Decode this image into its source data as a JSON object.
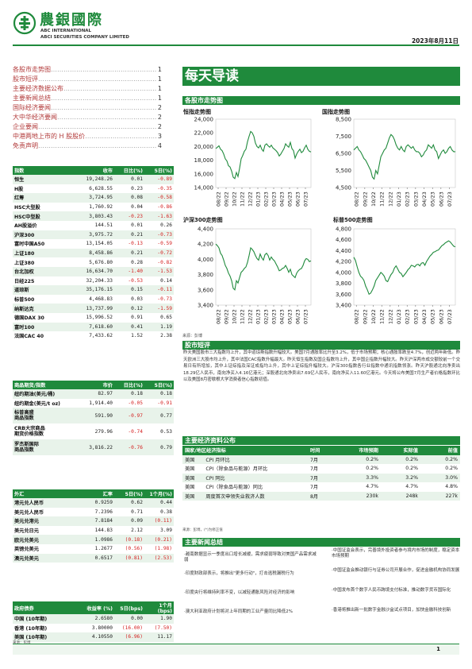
{
  "header": {
    "logo_cn": "農銀國際",
    "logo_en1": "ABC INTERNATIONAL",
    "logo_en2": "ABCI SECURITIES COMPANY LIMITED",
    "date": "2023年8月11日"
  },
  "toc": [
    {
      "label": "各股市走势图",
      "page": "1"
    },
    {
      "label": "股市短评",
      "page": "1"
    },
    {
      "label": "主要经济数据公布",
      "page": "1"
    },
    {
      "label": "主要新闻总结",
      "page": "1"
    },
    {
      "label": "国际经济要闻",
      "page": "2"
    },
    {
      "label": "大中华经济要闻",
      "page": "2"
    },
    {
      "label": "企业要闻",
      "page": "2"
    },
    {
      "label": "中港两地上市的 H 股股价",
      "page": "3"
    },
    {
      "label": "免责声明",
      "page": "4"
    }
  ],
  "page_title": "每天导读",
  "charts_section_title": "各股市走势图",
  "chart_data": [
    {
      "type": "line",
      "title": "恒指走势图",
      "x_ticks": [
        "08/22",
        "09/22",
        "10/22",
        "11/22",
        "12/22",
        "01/23",
        "02/23",
        "03/23",
        "04/23",
        "05/23",
        "06/23",
        "07/23"
      ],
      "y_ticks": [
        "14,000",
        "16,000",
        "18,000",
        "20,000",
        "22,000",
        "24,000"
      ],
      "ylim": [
        14000,
        24000
      ],
      "values": [
        19700,
        19900,
        20100,
        19600,
        19400,
        18900,
        18200,
        17900,
        17200,
        17000,
        16400,
        15500,
        15300,
        16200,
        15600,
        16800,
        18200,
        18700,
        19300,
        19600,
        20700,
        21500,
        22200,
        22000,
        21500,
        20500,
        20000,
        19800,
        20200,
        19600,
        19300,
        20200,
        20400,
        20100,
        19900,
        20200,
        19800,
        19600,
        19400,
        19100,
        18600,
        18900,
        19300,
        19700,
        20400,
        20100,
        19900,
        20600,
        19700,
        19400,
        18300,
        18900,
        19300,
        19600,
        19100,
        19300,
        19800,
        20200,
        19600,
        19300,
        19200
      ]
    },
    {
      "type": "line",
      "title": "国指走势图",
      "x_ticks": [
        "08/22",
        "09/22",
        "10/22",
        "11/22",
        "12/22",
        "01/23",
        "02/23",
        "03/23",
        "04/23",
        "05/23",
        "06/23",
        "07/23"
      ],
      "y_ticks": [
        "4,500",
        "5,500",
        "6,500",
        "7,500",
        "8,500"
      ],
      "ylim": [
        4500,
        8500
      ],
      "values": [
        6700,
        6800,
        6900,
        6700,
        6600,
        6400,
        6200,
        6100,
        5900,
        5700,
        5500,
        5100,
        5000,
        5500,
        5300,
        5800,
        6300,
        6500,
        6700,
        6800,
        7100,
        7400,
        7600,
        7500,
        7300,
        7000,
        6800,
        6700,
        6900,
        6700,
        6600,
        6900,
        7000,
        6900,
        6800,
        6900,
        6700,
        6600,
        6600,
        6500,
        6300,
        6400,
        6600,
        6700,
        7000,
        6900,
        6800,
        7000,
        6700,
        6600,
        6200,
        6400,
        6600,
        6700,
        6500,
        6600,
        6800,
        6900,
        6700,
        6600,
        6600
      ]
    },
    {
      "type": "line",
      "title": "沪深300走势图",
      "x_ticks": [
        "08/22",
        "09/22",
        "10/22",
        "11/22",
        "12/22",
        "01/23",
        "02/23",
        "03/23",
        "04/23",
        "05/23",
        "06/23",
        "07/23"
      ],
      "y_ticks": [
        "3,400",
        "3,600",
        "3,800",
        "4,000",
        "4,200",
        "4,400"
      ],
      "ylim": [
        3400,
        4400
      ],
      "values": [
        4200,
        4180,
        4150,
        4080,
        4050,
        3990,
        3920,
        3880,
        3820,
        3780,
        3720,
        3620,
        3600,
        3720,
        3690,
        3760,
        3830,
        3850,
        3880,
        3900,
        3960,
        4050,
        4150,
        4130,
        4100,
        4050,
        4010,
        3990,
        4070,
        4020,
        3990,
        4060,
        4080,
        4050,
        3990,
        4030,
        4000,
        3980,
        3940,
        3900,
        3850,
        3860,
        3880,
        3890,
        3920,
        3880,
        3830,
        3870,
        3800,
        3780,
        3760,
        3820,
        3850,
        3870,
        3880,
        3920,
        3980,
        4010,
        4000,
        3970,
        3980
      ]
    },
    {
      "type": "line",
      "title": "标普500走势图",
      "x_ticks": [
        "08/22",
        "09/22",
        "10/22",
        "11/22",
        "12/22",
        "01/23",
        "02/23",
        "03/23",
        "04/23",
        "05/23",
        "06/23",
        "07/23"
      ],
      "y_ticks": [
        "3,400",
        "3,600",
        "3,800",
        "4,000",
        "4,200",
        "4,400",
        "4,600",
        "4,800"
      ],
      "ylim": [
        3400,
        4800
      ],
      "values": [
        4280,
        4220,
        4100,
        4000,
        3930,
        3900,
        3850,
        3750,
        3680,
        3600,
        3620,
        3680,
        3750,
        3850,
        3900,
        3950,
        4000,
        3970,
        3930,
        3850,
        3830,
        3900,
        3960,
        4000,
        4080,
        4120,
        4060,
        4000,
        3980,
        3920,
        3960,
        4000,
        4050,
        4080,
        4130,
        4120,
        4100,
        4140,
        4150,
        4120,
        4170,
        4180,
        4130,
        4200,
        4250,
        4300,
        4330,
        4370,
        4380,
        4400,
        4410,
        4450,
        4490,
        4510,
        4540,
        4560,
        4580,
        4560,
        4520,
        4480,
        4470
      ]
    }
  ],
  "chart_source": "来源：彭博",
  "market_table": {
    "headers": [
      "指数",
      "收市",
      "日比(%)",
      "5日(%)"
    ],
    "rows": [
      [
        "恒生",
        "19,248.26",
        "0.01",
        "-0.89"
      ],
      [
        "H股",
        "6,628.55",
        "0.23",
        "-0.35"
      ],
      [
        "红筹",
        "3,724.95",
        "0.08",
        "-0.58"
      ],
      [
        "HSC大型股",
        "1,760.92",
        "0.04",
        "-0.86"
      ],
      [
        "HSC中型股",
        "3,803.43",
        "-0.23",
        "-1.63"
      ],
      [
        "AH股溢价",
        "144.51",
        "0.01",
        "0.26"
      ],
      [
        "沪深300",
        "3,975.72",
        "0.21",
        "-0.73"
      ],
      [
        "富时中国A50",
        "13,154.05",
        "-0.13",
        "-0.59"
      ],
      [
        "上证180",
        "8,458.86",
        "0.21",
        "-0.72"
      ],
      [
        "上证380",
        "5,676.80",
        "0.28",
        "-0.82"
      ],
      [
        "台北加权",
        "16,634.70",
        "-1.40",
        "-1.53"
      ],
      [
        "日经225",
        "32,204.33",
        "-0.53",
        "0.14"
      ],
      [
        "道琼斯",
        "35,176.15",
        "0.15",
        "-0.11"
      ],
      [
        "标普500",
        "4,468.83",
        "0.03",
        "-0.73"
      ],
      [
        "纳斯达克",
        "13,737.99",
        "0.12",
        "-1.59"
      ],
      [
        "德国DAX 30",
        "15,996.52",
        "0.91",
        "0.65"
      ],
      [
        "富时100",
        "7,618.60",
        "0.41",
        "1.19"
      ],
      [
        "法国CAC 40",
        "7,433.62",
        "1.52",
        "2.38"
      ]
    ]
  },
  "commodity_table": {
    "headers": [
      "商品期货/指数",
      "市价",
      "日比(%)",
      "5日(%)"
    ],
    "rows": [
      [
        "纽约期油(美元/桶)",
        "82.97",
        "0.18",
        "0.18"
      ],
      [
        "纽约期金(美元/t oz)",
        "1,914.40",
        "-0.05",
        "-0.91"
      ],
      [
        "标普高盛\n商品指数",
        "591.90",
        "-0.97",
        "0.77"
      ],
      [
        "CRB大宗商品\n期货价格指数",
        "279.96",
        "-0.74",
        "0.53"
      ],
      [
        "罗杰斯国际\n商品指数",
        "3,816.22",
        "-0.76",
        "0.79"
      ]
    ]
  },
  "fx_table": {
    "headers": [
      "外汇",
      "汇率",
      "5日(%)",
      "1个月(%)"
    ],
    "rows": [
      [
        "港元兑人民币",
        "0.9259",
        "0.62",
        "0.44"
      ],
      [
        "美元兑人民币",
        "7.2396",
        "0.71",
        "0.38"
      ],
      [
        "美元兑港元",
        "7.8184",
        "0.09",
        "(0.11)"
      ],
      [
        "美元兑日元",
        "144.83",
        "2.12",
        "3.09"
      ],
      [
        "欧元兑美元",
        "1.0986",
        "(0.18)",
        "(0.21)"
      ],
      [
        "英镑兑美元",
        "1.2677",
        "(0.56)",
        "(1.98)"
      ],
      [
        "澳元兑美元",
        "0.6517",
        "(0.81)",
        "(2.53)"
      ]
    ]
  },
  "bond_table": {
    "headers": [
      "政府债券",
      "收益率 (%)",
      "5日(bps)",
      "1个月(bps)"
    ],
    "rows": [
      [
        "中国 (10年期)",
        "2.6580",
        "0.00",
        "1.90"
      ],
      [
        "香港 (10年期)",
        "3.80000",
        "(16.00)",
        "(7.50)"
      ],
      [
        "美国 (10年期)",
        "4.10550",
        "(6.96)",
        "11.17"
      ]
    ]
  },
  "bond_source": "来源：彭博",
  "commentary": {
    "title": "股市短评",
    "text": "昨天美国股市三大指数均上升，其中道琼斯指数升幅较大。美国7月通胀率比升至3.2%，低于市场预期；核心通胀率跌至4.7%，创近两年新低。昨天欧洲三大股市均上升，其中法国CAC指数升幅最大。昨天恒生指数及国企指数均上升，其中国企指数升幅较大。昨天沪深两市成交额较前一个交易日有所增加，其中上证综指及深证成指均上升，其中上证综指升幅较大。沪深300指数各行业指数中通讯指数领涨。昨天沪股通北向净卖出18.29亿人民币，南向净买入4.16亿港元；深股通北向净卖出7.69亿人民币，南向净买入11.60亿港元。今天将公布美国7月生产者价格指数环比以及美国8月密歇根大学消费者信心指数初值。"
  },
  "eco_section_title": "主要经济资料公布",
  "eco_table": {
    "headers": [
      "国家/地区经济指标",
      "时间",
      "市场预期",
      "实际值",
      "前值"
    ],
    "rows": [
      [
        "美国",
        "CPI 月环比",
        "7月",
        "0.2%",
        "0.2%",
        "0.2%"
      ],
      [
        "美国",
        "CPI（除食品与能源）月环比",
        "7月",
        "0.2%",
        "0.2%",
        "0.2%"
      ],
      [
        "美国",
        "CPI 同比",
        "7月",
        "3.3%",
        "3.2%",
        "3.0%"
      ],
      [
        "美国",
        "CPI（除食品与能源）同比",
        "7月",
        "4.7%",
        "4.7%",
        "4.8%"
      ],
      [
        "美国",
        "周度首次申领失业救济人数",
        "8月",
        "230k",
        "248k",
        "227k"
      ]
    ],
    "source": "来源：彭博，(*)为修正值"
  },
  "news_section_title": "主要新闻总结",
  "news_left": [
    "·越南数据显示一季度出口增长减缓，需求疲弱导致对美国产品需求减弱",
    "·印度财政部表示，将推出\"更多行动\"，打击逃税漏税行为",
    "·印度央行将维持利率不变，以减轻通胀风险对经济的影响",
    "·澳大利亚政府计划将对上年同期的工业产量同比降低2%"
  ],
  "news_right": [
    "·中国证监会表示，完善境外投资者参与境内市场的制度，稳定资本市场预期",
    "·中国证监会推动银行与证券公司开展合作，促进金融机构协同发展",
    "·中国发布首个数字人民币跨境支付标准，推动数字货币国际化",
    "·香港将推出新一批数字金融沙盒试点项目，加快金融科技创新"
  ],
  "page_number": "1"
}
